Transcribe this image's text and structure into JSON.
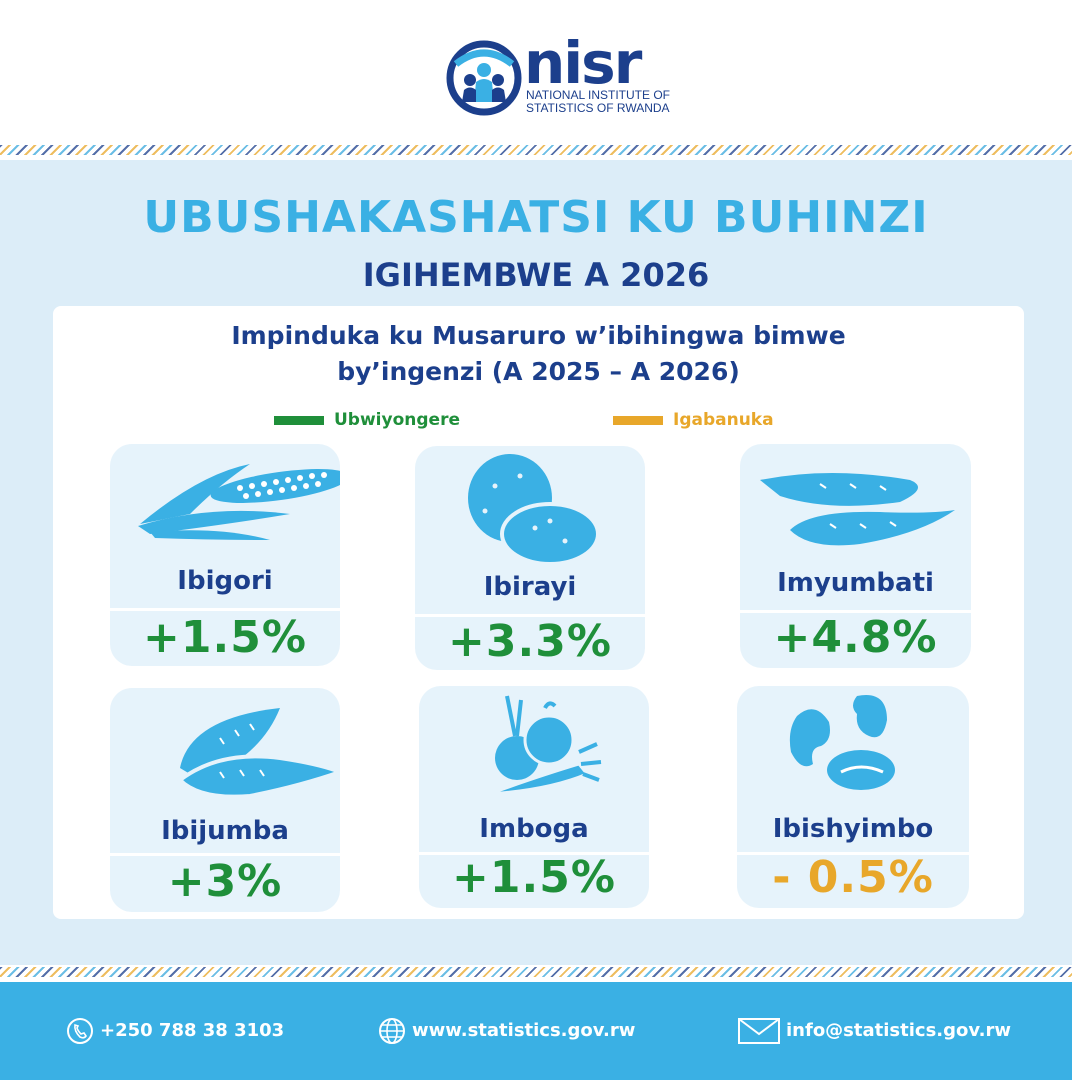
{
  "logo": {
    "wordmark": "nisr",
    "name_line1": "NATIONAL INSTITUTE OF",
    "name_line2": "STATISTICS OF RWANDA"
  },
  "title": "UBUSHAKASHATSI KU BUHINZI",
  "season": "IGIHEMBWE  A 2026",
  "subtitle_line1": "Impinduka ku Musaruro w’ibihingwa bimwe",
  "subtitle_line2": "by’ingenzi (A 2025 – A 2026)",
  "legend": {
    "increase": "Ubwiyongere",
    "decrease": "Igabanuka",
    "increase_color": "#1f8f3a",
    "decrease_color": "#e8a72a"
  },
  "crops": [
    {
      "name": "Ibigori",
      "change": "+1.5%",
      "direction": "increase",
      "icon": "maize-icon"
    },
    {
      "name": "Ibirayi",
      "change": "+3.3%",
      "direction": "increase",
      "icon": "potato-icon"
    },
    {
      "name": "Imyumbati",
      "change": "+4.8%",
      "direction": "increase",
      "icon": "cassava-icon"
    },
    {
      "name": "Ibijumba",
      "change": "+3%",
      "direction": "increase",
      "icon": "sweet-potato-icon"
    },
    {
      "name": "Imboga",
      "change": "+1.5%",
      "direction": "increase",
      "icon": "vegetables-icon"
    },
    {
      "name": "Ibishyimbo",
      "change": "- 0.5%",
      "direction": "decrease",
      "icon": "beans-icon"
    }
  ],
  "footer": {
    "phone": "+250 788 38 3103",
    "website": "www.statistics.gov.rw",
    "email": "info@statistics.gov.rw"
  },
  "colors": {
    "brand_blue": "#1c3f8c",
    "accent_light_blue": "#3ab0e4",
    "panel_bg": "#dcedf8"
  }
}
